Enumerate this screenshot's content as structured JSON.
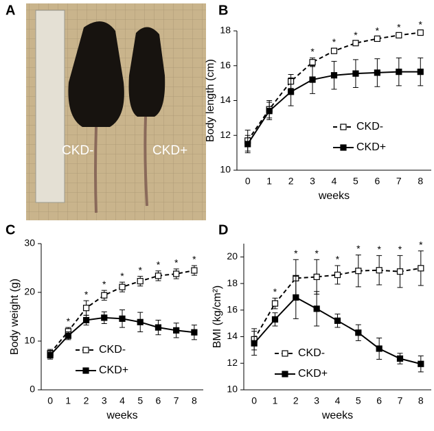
{
  "photo": {
    "panel": "A",
    "labels": [
      "CKD-",
      "CKD+"
    ]
  },
  "chart_data": [
    {
      "type": "line",
      "panel": "B",
      "xlabel": "weeks",
      "ylabel": "Body length (cm)",
      "x": [
        0,
        1,
        2,
        3,
        4,
        5,
        6,
        7,
        8
      ],
      "xlim": [
        -0.5,
        8.5
      ],
      "xticks": [
        0,
        1,
        2,
        3,
        4,
        5,
        6,
        7,
        8
      ],
      "ylim": [
        10,
        18
      ],
      "yticks": [
        10,
        12,
        14,
        16,
        18
      ],
      "series": [
        {
          "name": "CKD-",
          "color": "#000000",
          "dash": true,
          "marker": "open-square",
          "values": [
            11.7,
            13.5,
            15.1,
            16.2,
            16.85,
            17.3,
            17.55,
            17.75,
            17.9
          ],
          "errors": [
            0.6,
            0.5,
            0.4,
            0.25,
            0.15,
            0.1,
            0.1,
            0.1,
            0.1
          ]
        },
        {
          "name": "CKD+",
          "color": "#000000",
          "dash": false,
          "marker": "filled-square",
          "values": [
            11.5,
            13.4,
            14.5,
            15.2,
            15.45,
            15.55,
            15.6,
            15.65,
            15.65
          ],
          "errors": [
            0.5,
            0.5,
            0.8,
            0.8,
            0.8,
            0.8,
            0.8,
            0.8,
            0.8
          ]
        }
      ],
      "annotations": [
        {
          "text": "*",
          "x": 3
        },
        {
          "text": "*",
          "x": 4
        },
        {
          "text": "*",
          "x": 5
        },
        {
          "text": "*",
          "x": 6
        },
        {
          "text": "*",
          "x": 7
        },
        {
          "text": "*",
          "x": 8
        }
      ]
    },
    {
      "type": "line",
      "panel": "C",
      "xlabel": "weeks",
      "ylabel": "Body weight (g)",
      "x": [
        0,
        1,
        2,
        3,
        4,
        5,
        6,
        7,
        8
      ],
      "xlim": [
        -0.5,
        8.5
      ],
      "xticks": [
        0,
        1,
        2,
        3,
        4,
        5,
        6,
        7,
        8
      ],
      "ylim": [
        0,
        30
      ],
      "yticks": [
        0,
        10,
        20,
        30
      ],
      "series": [
        {
          "name": "CKD-",
          "color": "#000000",
          "dash": true,
          "marker": "open-square",
          "values": [
            7.5,
            12,
            16.8,
            19.4,
            21.1,
            22.3,
            23.4,
            23.8,
            24.5
          ],
          "errors": [
            0.8,
            0.8,
            1.5,
            1,
            1,
            1,
            1,
            1,
            1
          ]
        },
        {
          "name": "CKD+",
          "color": "#000000",
          "dash": false,
          "marker": "filled-square",
          "values": [
            7.1,
            11.1,
            14.3,
            14.8,
            14.6,
            13.9,
            12.8,
            12.2,
            11.8
          ],
          "errors": [
            0.8,
            0.8,
            1,
            1.2,
            1.8,
            2,
            1.5,
            1.5,
            1.5
          ]
        }
      ],
      "annotations": [
        {
          "text": "*",
          "x": 1
        },
        {
          "text": "*",
          "x": 2
        },
        {
          "text": "*",
          "x": 3
        },
        {
          "text": "*",
          "x": 4
        },
        {
          "text": "*",
          "x": 5
        },
        {
          "text": "*",
          "x": 6
        },
        {
          "text": "*",
          "x": 7
        },
        {
          "text": "*",
          "x": 8
        }
      ]
    },
    {
      "type": "line",
      "panel": "D",
      "xlabel": "weeks",
      "ylabel": "BMI (kg/cm²)",
      "x": [
        0,
        1,
        2,
        3,
        4,
        5,
        6,
        7,
        8
      ],
      "xlim": [
        -0.5,
        8.5
      ],
      "xticks": [
        0,
        1,
        2,
        3,
        4,
        5,
        6,
        7,
        8
      ],
      "ylim": [
        10,
        21
      ],
      "yticks": [
        10,
        12,
        14,
        16,
        18,
        20
      ],
      "series": [
        {
          "name": "CKD-",
          "color": "#000000",
          "dash": true,
          "marker": "open-square",
          "values": [
            13.8,
            16.5,
            18.4,
            18.5,
            18.65,
            18.95,
            19.0,
            18.9,
            19.15
          ],
          "errors": [
            0.8,
            0.4,
            1.4,
            1.3,
            0.7,
            1.2,
            1.1,
            1.2,
            1.3
          ]
        },
        {
          "name": "CKD+",
          "color": "#000000",
          "dash": false,
          "marker": "filled-square",
          "values": [
            13.5,
            15.3,
            16.95,
            16.1,
            15.2,
            14.3,
            13.1,
            12.35,
            11.95
          ],
          "errors": [
            0.9,
            0.5,
            1.6,
            1.3,
            0.5,
            0.6,
            0.8,
            0.4,
            0.6
          ]
        }
      ],
      "annotations": [
        {
          "text": "*",
          "x": 1
        },
        {
          "text": "*",
          "x": 2
        },
        {
          "text": "*",
          "x": 3
        },
        {
          "text": "*",
          "x": 4
        },
        {
          "text": "*",
          "x": 5
        },
        {
          "text": "*",
          "x": 6
        },
        {
          "text": "*",
          "x": 7
        },
        {
          "text": "*",
          "x": 8
        }
      ]
    }
  ]
}
